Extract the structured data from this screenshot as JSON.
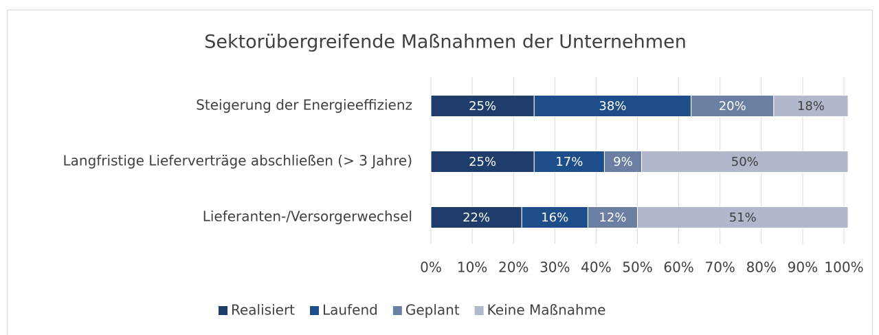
{
  "chart_data": {
    "type": "stacked-barh",
    "title": "Sektorübergreifende Maßnahmen der Unternehmen",
    "categories": [
      "Steigerung der Energieeffizienz",
      "Langfristige Lieferverträge abschließen (> 3 Jahre)",
      "Lieferanten-/Versorgerwechsel"
    ],
    "series": [
      {
        "name": "Realisiert",
        "color": "#1f3d6b",
        "values": [
          25,
          25,
          22
        ],
        "value_labels": [
          "25%",
          "25%",
          "22%"
        ]
      },
      {
        "name": "Laufend",
        "color": "#1d4e89",
        "values": [
          38,
          17,
          16
        ],
        "value_labels": [
          "38%",
          "17%",
          "16%"
        ]
      },
      {
        "name": "Geplant",
        "color": "#6b7fa3",
        "values": [
          20,
          9,
          12
        ],
        "value_labels": [
          "20%",
          "9%",
          "12%"
        ]
      },
      {
        "name": "Keine Maßnahme",
        "color": "#b1b8cc",
        "values": [
          18,
          50,
          51
        ],
        "value_labels": [
          "18%",
          "50%",
          "51%"
        ]
      }
    ],
    "xlim": [
      0,
      100
    ],
    "xticks": [
      {
        "value": 0,
        "label": "0%"
      },
      {
        "value": 10,
        "label": "10%"
      },
      {
        "value": 20,
        "label": "20%"
      },
      {
        "value": 30,
        "label": "30%"
      },
      {
        "value": 40,
        "label": "40%"
      },
      {
        "value": 50,
        "label": "50%"
      },
      {
        "value": 60,
        "label": "60%"
      },
      {
        "value": 70,
        "label": "70%"
      },
      {
        "value": 80,
        "label": "80%"
      },
      {
        "value": 90,
        "label": "90%"
      },
      {
        "value": 100,
        "label": "100%"
      }
    ],
    "grid": true,
    "legend": "bottom"
  }
}
